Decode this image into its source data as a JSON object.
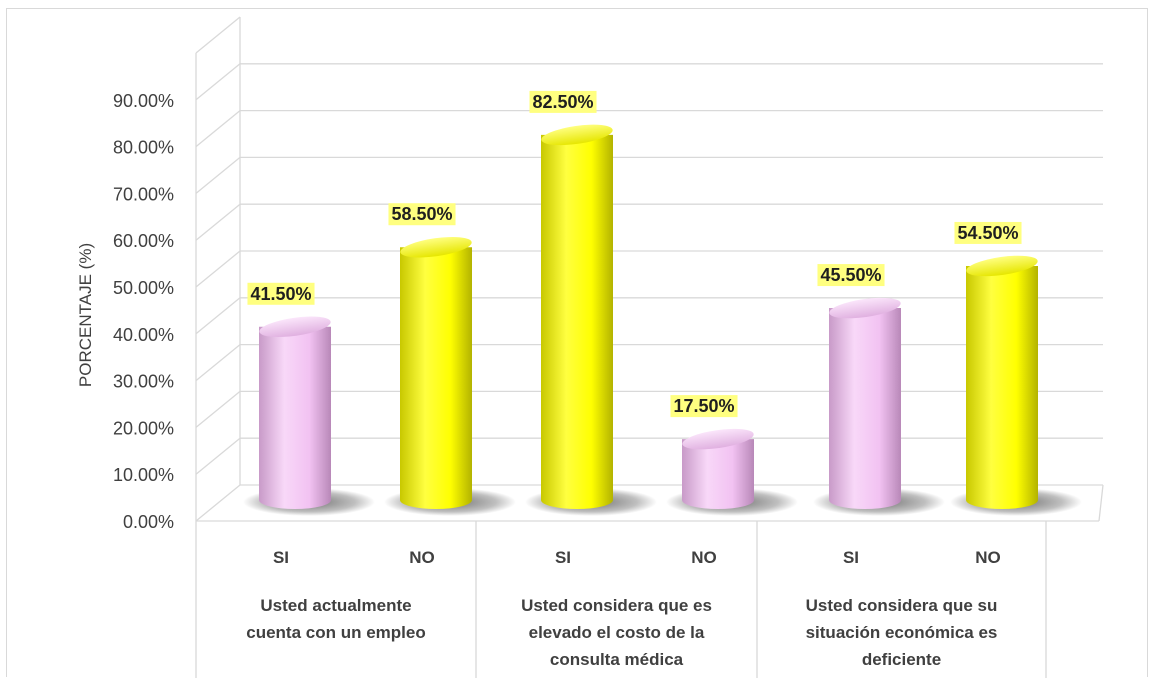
{
  "chart_data": {
    "type": "bar",
    "ylabel": "PORCENTAJE (%)",
    "xlabel": "",
    "ylim": [
      0,
      0.9
    ],
    "y_ticks": [
      "0.00%",
      "10.00%",
      "20.00%",
      "30.00%",
      "40.00%",
      "50.00%",
      "60.00%",
      "70.00%",
      "80.00%",
      "90.00%"
    ],
    "grid": true,
    "legend": "none",
    "groups": [
      {
        "label_lines": [
          "Usted actualmente",
          "cuenta con un empleo"
        ],
        "bars": [
          {
            "category": "SI",
            "value": 0.415,
            "label": "41.50%",
            "color": "#f2c2f2"
          },
          {
            "category": "NO",
            "value": 0.585,
            "label": "58.50%",
            "color": "#ffff00"
          }
        ]
      },
      {
        "label_lines": [
          "Usted considera que es",
          "elevado el  costo de la",
          "consulta médica"
        ],
        "bars": [
          {
            "category": "SI",
            "value": 0.825,
            "label": "82.50%",
            "color": "#ffff00"
          },
          {
            "category": "NO",
            "value": 0.175,
            "label": "17.50%",
            "color": "#f2c2f2"
          }
        ]
      },
      {
        "label_lines": [
          "Usted considera que su",
          "situación económica es",
          "deficiente"
        ],
        "bars": [
          {
            "category": "SI",
            "value": 0.455,
            "label": "45.50%",
            "color": "#f2c2f2"
          },
          {
            "category": "NO",
            "value": 0.545,
            "label": "54.50%",
            "color": "#ffff00"
          }
        ]
      }
    ]
  },
  "colors": {
    "pink": "#f2c2f2",
    "yellow": "#ffff00",
    "label_highlight": "#ffff80",
    "grid": "#d9d9d9"
  }
}
